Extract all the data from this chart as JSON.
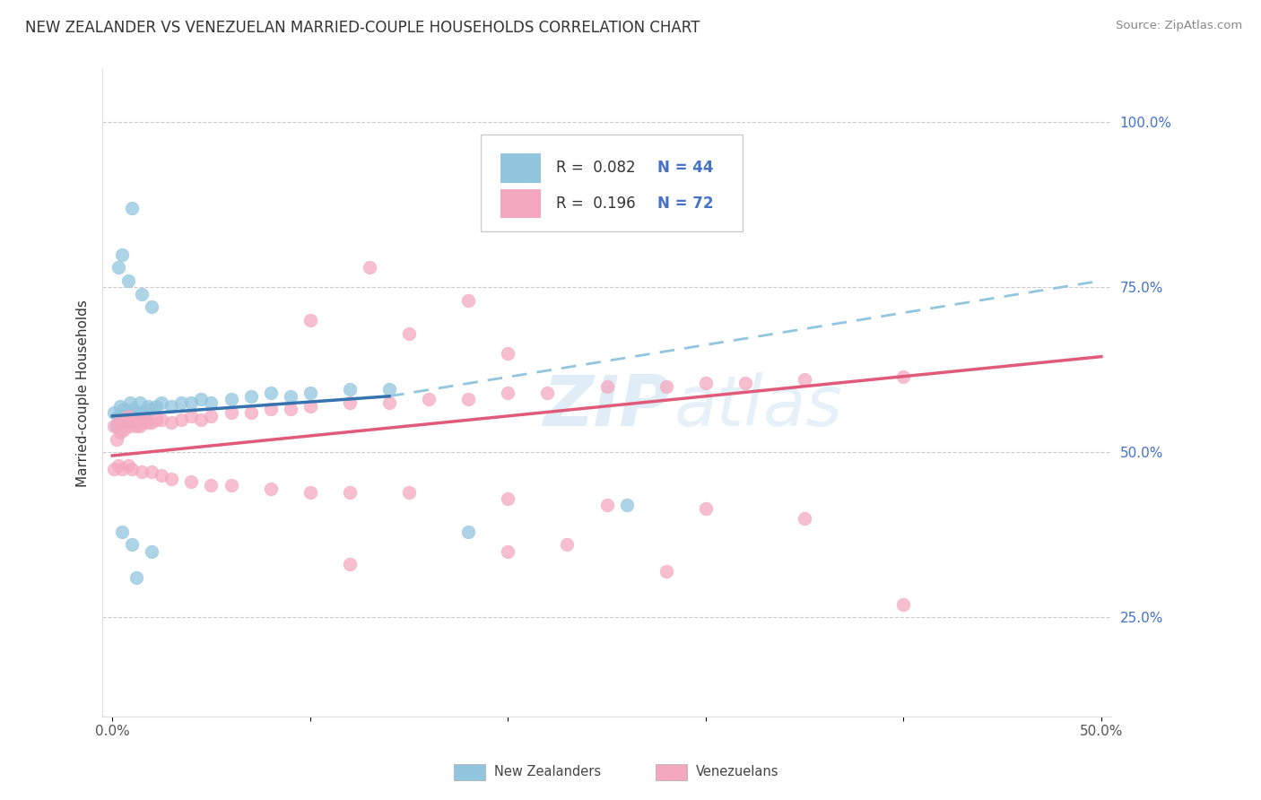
{
  "title": "NEW ZEALANDER VS VENEZUELAN MARRIED-COUPLE HOUSEHOLDS CORRELATION CHART",
  "source": "Source: ZipAtlas.com",
  "ylabel": "Married-couple Households",
  "xlim": [
    0.0,
    0.5
  ],
  "ylim": [
    0.1,
    1.08
  ],
  "xtick_vals": [
    0.0,
    0.1,
    0.2,
    0.3,
    0.4,
    0.5
  ],
  "xticklabels": [
    "0.0%",
    "",
    "",
    "",
    "",
    "50.0%"
  ],
  "ytick_vals": [
    0.25,
    0.5,
    0.75,
    1.0
  ],
  "yticklabels": [
    "25.0%",
    "50.0%",
    "75.0%",
    "100.0%"
  ],
  "blue_color": "#92c5de",
  "pink_color": "#f4a8bf",
  "blue_line_color": "#3572b0",
  "pink_line_color": "#e05a7a",
  "dashed_line_color": "#92c5de",
  "ytick_color": "#4472c4",
  "watermark": "ZIPatlas",
  "blue_line_x0": 0.0,
  "blue_line_x1": 0.14,
  "blue_line_y0": 0.555,
  "blue_line_y1": 0.585,
  "dashed_line_x0": 0.14,
  "dashed_line_x1": 0.5,
  "dashed_line_y0": 0.585,
  "dashed_line_y1": 0.76,
  "pink_line_x0": 0.0,
  "pink_line_x1": 0.5,
  "pink_line_y0": 0.495,
  "pink_line_y1": 0.645,
  "blue_x": [
    0.001,
    0.002,
    0.003,
    0.004,
    0.005,
    0.006,
    0.007,
    0.008,
    0.009,
    0.01,
    0.011,
    0.012,
    0.013,
    0.014,
    0.015,
    0.016,
    0.018,
    0.02,
    0.022,
    0.025,
    0.03,
    0.035,
    0.04,
    0.045,
    0.05,
    0.06,
    0.07,
    0.08,
    0.09,
    0.1,
    0.12,
    0.14,
    0.01,
    0.005,
    0.003,
    0.008,
    0.015,
    0.02,
    0.18,
    0.26,
    0.005,
    0.01,
    0.02,
    0.012
  ],
  "blue_y": [
    0.56,
    0.54,
    0.555,
    0.57,
    0.545,
    0.565,
    0.55,
    0.56,
    0.575,
    0.555,
    0.565,
    0.545,
    0.56,
    0.575,
    0.55,
    0.56,
    0.57,
    0.565,
    0.57,
    0.575,
    0.57,
    0.575,
    0.575,
    0.58,
    0.575,
    0.58,
    0.585,
    0.59,
    0.585,
    0.59,
    0.595,
    0.595,
    0.87,
    0.8,
    0.78,
    0.76,
    0.74,
    0.72,
    0.38,
    0.42,
    0.38,
    0.36,
    0.35,
    0.31
  ],
  "pink_x": [
    0.001,
    0.002,
    0.003,
    0.004,
    0.005,
    0.006,
    0.007,
    0.008,
    0.009,
    0.01,
    0.011,
    0.012,
    0.013,
    0.014,
    0.015,
    0.016,
    0.018,
    0.02,
    0.022,
    0.025,
    0.03,
    0.035,
    0.04,
    0.045,
    0.05,
    0.06,
    0.07,
    0.08,
    0.09,
    0.1,
    0.12,
    0.14,
    0.16,
    0.18,
    0.2,
    0.22,
    0.25,
    0.28,
    0.3,
    0.32,
    0.35,
    0.4,
    0.001,
    0.003,
    0.005,
    0.008,
    0.01,
    0.015,
    0.02,
    0.025,
    0.03,
    0.04,
    0.05,
    0.06,
    0.08,
    0.1,
    0.12,
    0.15,
    0.2,
    0.25,
    0.3,
    0.35,
    0.12,
    0.2,
    0.23,
    0.4,
    0.28,
    0.13,
    0.18,
    0.1,
    0.15,
    0.2
  ],
  "pink_y": [
    0.54,
    0.52,
    0.545,
    0.53,
    0.55,
    0.535,
    0.545,
    0.555,
    0.54,
    0.545,
    0.545,
    0.54,
    0.55,
    0.54,
    0.545,
    0.55,
    0.545,
    0.545,
    0.55,
    0.55,
    0.545,
    0.55,
    0.555,
    0.55,
    0.555,
    0.56,
    0.56,
    0.565,
    0.565,
    0.57,
    0.575,
    0.575,
    0.58,
    0.58,
    0.59,
    0.59,
    0.6,
    0.6,
    0.605,
    0.605,
    0.61,
    0.615,
    0.475,
    0.48,
    0.475,
    0.48,
    0.475,
    0.47,
    0.47,
    0.465,
    0.46,
    0.455,
    0.45,
    0.45,
    0.445,
    0.44,
    0.44,
    0.44,
    0.43,
    0.42,
    0.415,
    0.4,
    0.33,
    0.35,
    0.36,
    0.27,
    0.32,
    0.78,
    0.73,
    0.7,
    0.68,
    0.65
  ]
}
